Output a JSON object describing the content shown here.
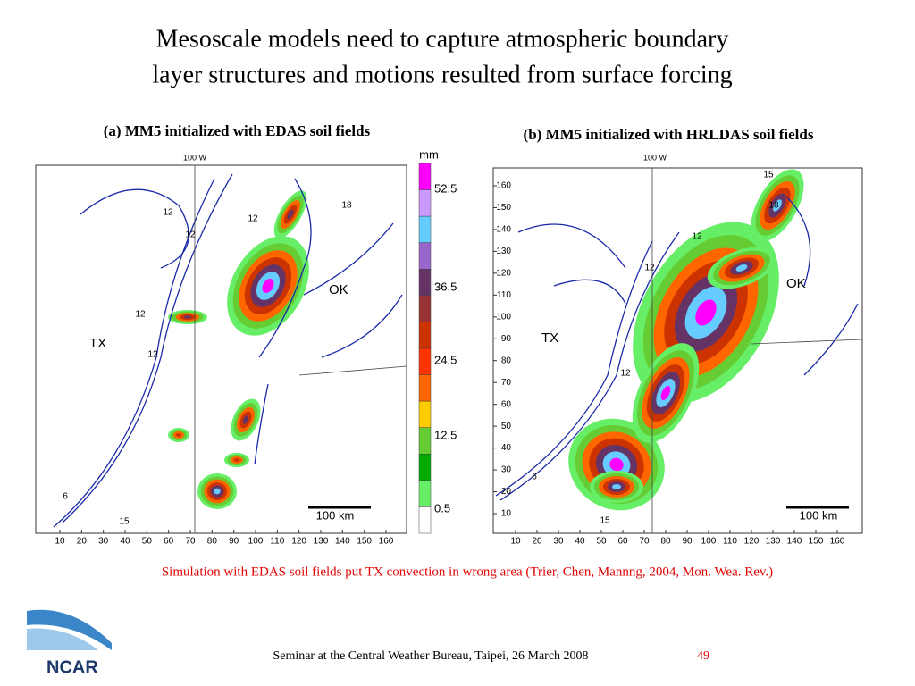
{
  "title": {
    "line1": "Mesoscale  models need to capture atmospheric boundary",
    "line2": "layer structures and motions resulted from surface forcing"
  },
  "panel_a": {
    "caption": "(a) MM5 initialized with EDAS soil fields",
    "longitude": "100 W",
    "regions": [
      "TX",
      "OK"
    ],
    "contours": [
      "12",
      "12",
      "12",
      "12",
      "12",
      "18",
      "6",
      "15"
    ],
    "scale": "100 km",
    "xticks": [
      10,
      20,
      30,
      40,
      50,
      60,
      70,
      80,
      90,
      100,
      110,
      120,
      130,
      140,
      150,
      160
    ]
  },
  "panel_b": {
    "caption": "(b) MM5 initialized with HRLDAS soil fields",
    "longitude": "100 W",
    "regions": [
      "TX",
      "OK"
    ],
    "contours": [
      "15",
      "18",
      "12",
      "12",
      "12",
      "6",
      "15"
    ],
    "scale": "100 km",
    "xticks": [
      10,
      20,
      30,
      40,
      50,
      60,
      70,
      80,
      90,
      100,
      110,
      120,
      130,
      140,
      150,
      160
    ],
    "yticks": [
      10,
      20,
      30,
      40,
      50,
      60,
      70,
      80,
      90,
      100,
      110,
      120,
      130,
      140,
      150,
      160
    ]
  },
  "colorbar": {
    "unit": "mm",
    "labels": [
      "52.5",
      "36.5",
      "24.5",
      "12.5",
      "0.5"
    ]
  },
  "note": "Simulation with EDAS soil fields put TX convection in wrong area (Trier, Chen, Mannng, 2004, Mon. Wea. Rev.)",
  "footer": {
    "seminar": "Seminar at the Central Weather Bureau, Taipei, 26 March 2008",
    "page": "49",
    "logo": "NCAR"
  }
}
